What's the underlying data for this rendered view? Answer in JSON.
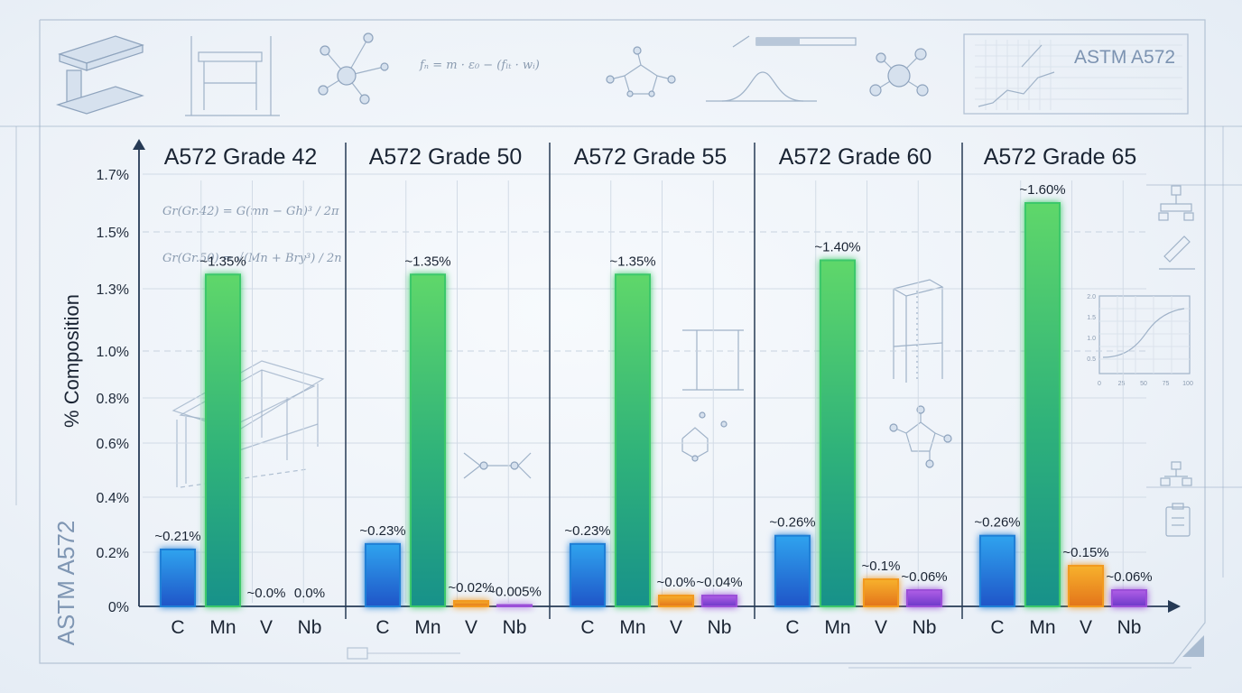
{
  "brand_label": "ASTM A572",
  "watermark": "ASTM A572",
  "formulas": {
    "top": "fₙ = m · ε₀ − (fₗₜ · wᵢ)",
    "left1": "Gr(Gr.42) = G(mn − Gh)³ / 2π",
    "left2": "Gr(Gr.50) = √(Mn + Bry³) / 2n"
  },
  "mini_chart": {
    "y_ticks": [
      "2.0",
      "1.5",
      "1.0",
      "0.5"
    ],
    "x_ticks": [
      "0",
      "25",
      "50",
      "75",
      "100"
    ]
  },
  "colors": {
    "C": "#1f7fd6",
    "Mn": "#3cc86a",
    "V": "#f29a1f",
    "Nb": "#9b4fd8",
    "axis": "#263a55"
  },
  "chart_data": {
    "type": "bar",
    "ylabel": "% Composition",
    "y_ticks": [
      {
        "label": "0%",
        "value": 0
      },
      {
        "label": "0.2%",
        "value": 0.2
      },
      {
        "label": "0.4%",
        "value": 0.4
      },
      {
        "label": "0.6%",
        "value": 0.6
      },
      {
        "label": "0.8%",
        "value": 0.8
      },
      {
        "label": "1.0%",
        "value": 1.0
      },
      {
        "label": "1.3%",
        "value": 1.3
      },
      {
        "label": "1.5%",
        "value": 1.5
      },
      {
        "label": "1.7%",
        "value": 1.7
      }
    ],
    "ylim": [
      0,
      1.7
    ],
    "categories": [
      "C",
      "Mn",
      "V",
      "Nb"
    ],
    "panels": [
      {
        "title": "A572 Grade 42",
        "values": [
          0.21,
          1.35,
          0.0,
          0.0
        ],
        "labels": [
          "~0.21%",
          "~1.35%",
          "~0.0%",
          "0.0%"
        ]
      },
      {
        "title": "A572 Grade 50",
        "values": [
          0.23,
          1.35,
          0.02,
          0.005
        ],
        "labels": [
          "~0.23%",
          "~1.35%",
          "~0.02%",
          "~0.005%"
        ]
      },
      {
        "title": "A572 Grade 55",
        "values": [
          0.23,
          1.35,
          0.04,
          0.04
        ],
        "labels": [
          "~0.23%",
          "~1.35%",
          "~0.0%",
          "~0.04%"
        ]
      },
      {
        "title": "A572 Grade 60",
        "values": [
          0.26,
          1.4,
          0.1,
          0.06
        ],
        "labels": [
          "~0.26%",
          "~1.40%",
          "~0.1%",
          "~0.06%"
        ]
      },
      {
        "title": "A572 Grade 65",
        "values": [
          0.26,
          1.6,
          0.15,
          0.06
        ],
        "labels": [
          "~0.26%",
          "~1.60%",
          "~0.15%",
          "~0.06%"
        ]
      }
    ]
  }
}
